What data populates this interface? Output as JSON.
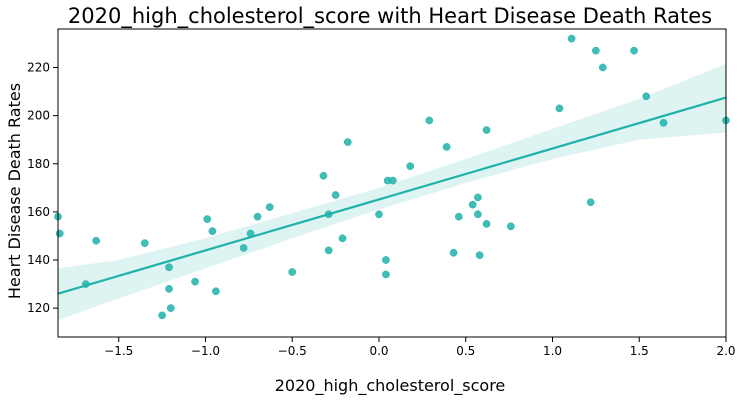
{
  "chart_data": {
    "type": "scatter",
    "title": "2020_high_cholesterol_score with Heart Disease Death Rates",
    "xlabel": "2020_high_cholesterol_score",
    "ylabel": "Heart Disease Death Rates",
    "xlim": [
      -1.85,
      2.0
    ],
    "ylim": [
      108,
      236
    ],
    "xticks": [
      -1.5,
      -1.0,
      -0.5,
      0.0,
      0.5,
      1.0,
      1.5,
      2.0
    ],
    "xtick_labels": [
      "−1.5",
      "−1.0",
      "−0.5",
      "0.0",
      "0.5",
      "1.0",
      "1.5",
      "2.0"
    ],
    "yticks": [
      120,
      140,
      160,
      180,
      200,
      220
    ],
    "ytick_labels": [
      "120",
      "140",
      "160",
      "180",
      "200",
      "220"
    ],
    "grid": false,
    "point_color": "#20b2aa",
    "line_color": "#20b2aa",
    "band_color": "#20b2aa",
    "points": [
      {
        "x": -1.85,
        "y": 158
      },
      {
        "x": -1.84,
        "y": 151
      },
      {
        "x": -1.69,
        "y": 130
      },
      {
        "x": -1.63,
        "y": 148
      },
      {
        "x": -1.35,
        "y": 147
      },
      {
        "x": -1.25,
        "y": 117
      },
      {
        "x": -1.21,
        "y": 137
      },
      {
        "x": -1.21,
        "y": 128
      },
      {
        "x": -1.2,
        "y": 120
      },
      {
        "x": -1.06,
        "y": 131
      },
      {
        "x": -0.99,
        "y": 157
      },
      {
        "x": -0.96,
        "y": 152
      },
      {
        "x": -0.94,
        "y": 127
      },
      {
        "x": -0.78,
        "y": 145
      },
      {
        "x": -0.74,
        "y": 151
      },
      {
        "x": -0.7,
        "y": 158
      },
      {
        "x": -0.63,
        "y": 162
      },
      {
        "x": -0.5,
        "y": 135
      },
      {
        "x": -0.32,
        "y": 175
      },
      {
        "x": -0.29,
        "y": 159
      },
      {
        "x": -0.29,
        "y": 144
      },
      {
        "x": -0.25,
        "y": 167
      },
      {
        "x": -0.21,
        "y": 149
      },
      {
        "x": -0.18,
        "y": 189
      },
      {
        "x": 0.0,
        "y": 159
      },
      {
        "x": 0.04,
        "y": 140
      },
      {
        "x": 0.04,
        "y": 134
      },
      {
        "x": 0.05,
        "y": 173
      },
      {
        "x": 0.08,
        "y": 173
      },
      {
        "x": 0.18,
        "y": 179
      },
      {
        "x": 0.29,
        "y": 198
      },
      {
        "x": 0.39,
        "y": 187
      },
      {
        "x": 0.43,
        "y": 143
      },
      {
        "x": 0.46,
        "y": 158
      },
      {
        "x": 0.54,
        "y": 163
      },
      {
        "x": 0.57,
        "y": 166
      },
      {
        "x": 0.57,
        "y": 159
      },
      {
        "x": 0.58,
        "y": 142
      },
      {
        "x": 0.62,
        "y": 194
      },
      {
        "x": 0.62,
        "y": 155
      },
      {
        "x": 0.76,
        "y": 154
      },
      {
        "x": 1.04,
        "y": 203
      },
      {
        "x": 1.11,
        "y": 232
      },
      {
        "x": 1.22,
        "y": 164
      },
      {
        "x": 1.25,
        "y": 227
      },
      {
        "x": 1.29,
        "y": 220
      },
      {
        "x": 1.47,
        "y": 227
      },
      {
        "x": 1.54,
        "y": 208
      },
      {
        "x": 1.64,
        "y": 197
      },
      {
        "x": 2.0,
        "y": 198
      }
    ],
    "regression": {
      "x": [
        -1.85,
        2.0
      ],
      "y": [
        126,
        207.5
      ]
    },
    "confidence_band": {
      "x": [
        -1.85,
        -1.5,
        -1.0,
        -0.5,
        0.0,
        0.5,
        1.0,
        1.5,
        2.0
      ],
      "lower": [
        115,
        124,
        136.5,
        149,
        161,
        172,
        182,
        190,
        193
      ],
      "upper": [
        136.5,
        140,
        149,
        159.5,
        170,
        182,
        194.5,
        207,
        221.5
      ]
    }
  }
}
